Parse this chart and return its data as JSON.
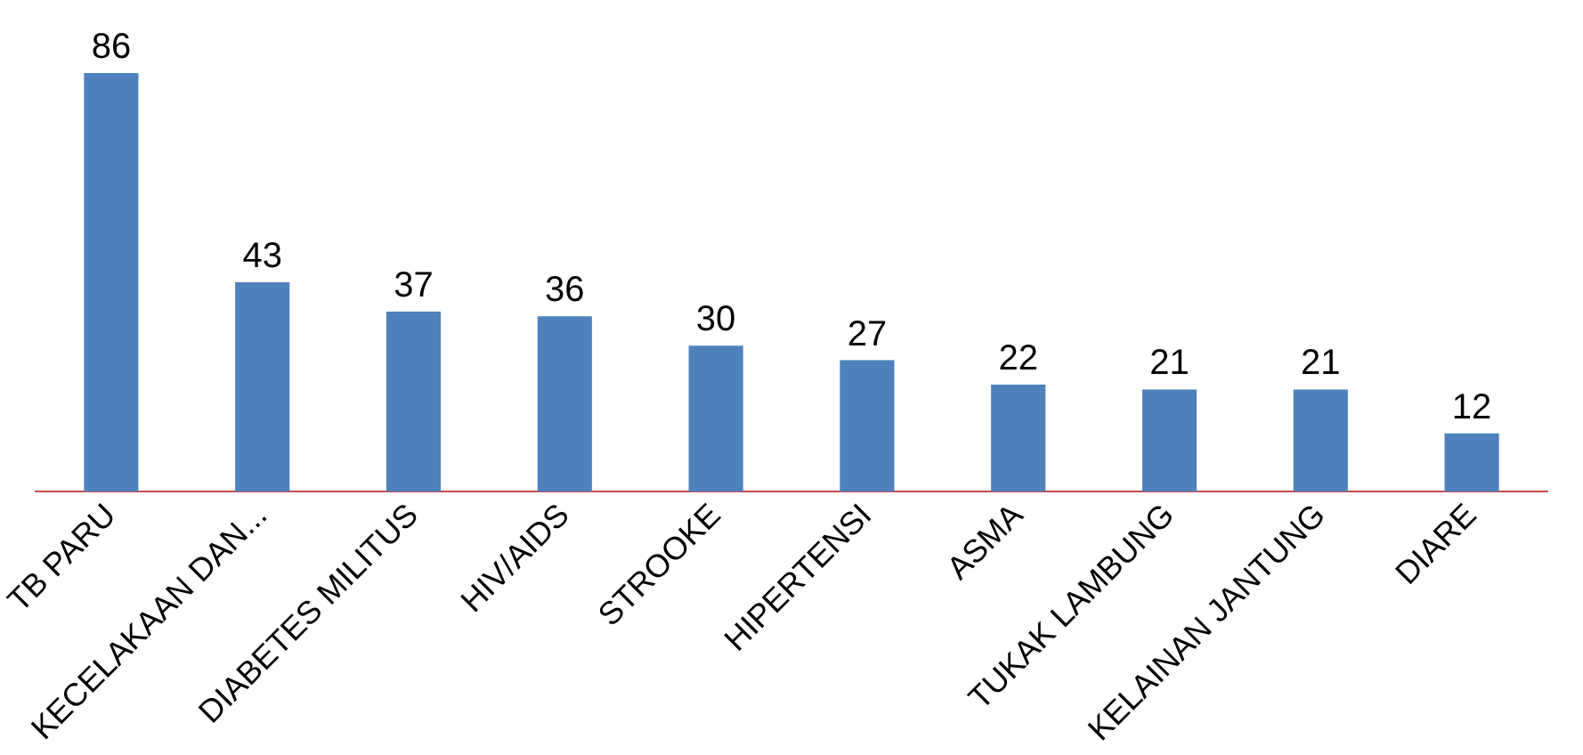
{
  "chart_data": {
    "type": "bar",
    "categories": [
      "TB PARU",
      "KECELAKAAN DAN...",
      "DIABETES MILITUS",
      "HIV/AIDS",
      "STROOKE",
      "HIPERTENSI",
      "ASMA",
      "TUKAK LAMBUNG",
      "KELAINAN JANTUNG",
      "DIARE"
    ],
    "values": [
      86,
      43,
      37,
      36,
      30,
      27,
      22,
      21,
      21,
      12
    ],
    "color": "#4f81bd",
    "data_labels": true,
    "grid": false,
    "legend": false
  }
}
